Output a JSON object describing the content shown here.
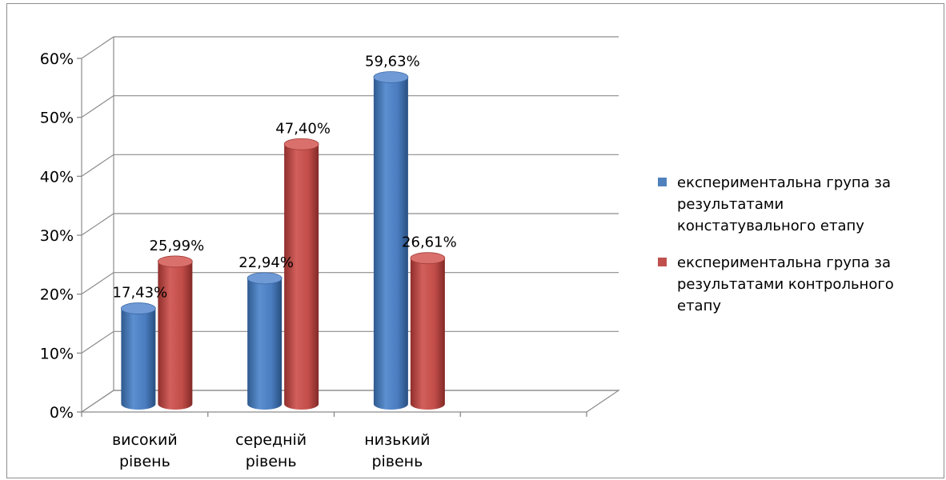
{
  "chart_data": {
    "type": "bar",
    "categories": [
      [
        "високий",
        "рівень"
      ],
      [
        "середній",
        "рівень"
      ],
      [
        "низький",
        "рівень"
      ]
    ],
    "series": [
      {
        "name": [
          "експериментальна група за",
          "результатами",
          "констатувального етапу"
        ],
        "color": "#4f81bd",
        "values": [
          17.43,
          22.94,
          59.63
        ],
        "labels": [
          "17,43%",
          "22,94%",
          "59,63%"
        ]
      },
      {
        "name": [
          "експериментальна група за",
          "результатами контрольного",
          "етапу"
        ],
        "color": "#c0504d",
        "values": [
          25.99,
          47.4,
          26.61
        ],
        "labels": [
          "25,99%",
          "47,40%",
          "26,61%"
        ]
      }
    ],
    "y_ticks": [
      "0%",
      "10%",
      "20%",
      "30%",
      "40%",
      "50%",
      "60%"
    ],
    "ylim": [
      0,
      60
    ],
    "grid": true,
    "legend": "right",
    "three_d": true
  }
}
